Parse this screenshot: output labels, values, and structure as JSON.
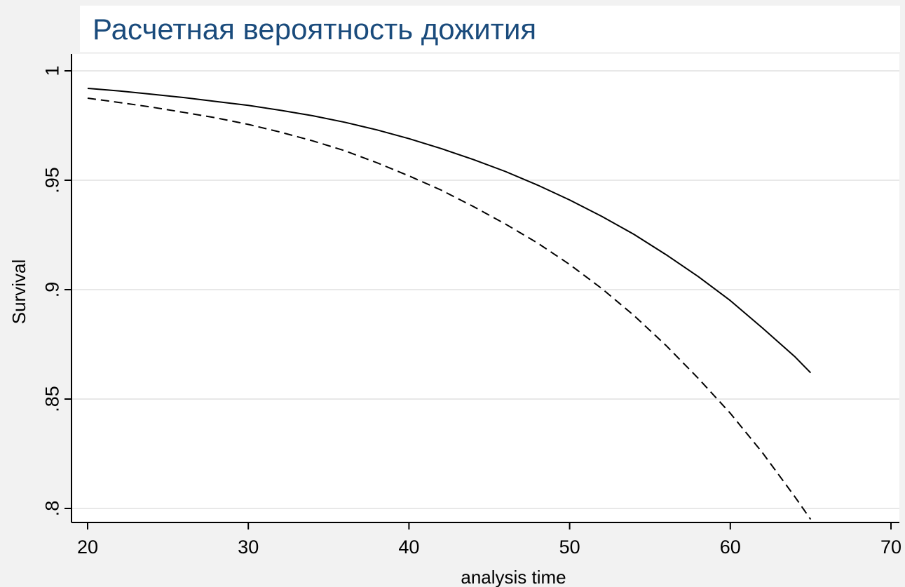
{
  "chart_data": {
    "type": "line",
    "title": "Расчетная вероятность дожития",
    "xlabel": "analysis time",
    "ylabel": "Survival",
    "xlim": [
      20,
      70
    ],
    "ylim": [
      0.8,
      1.0
    ],
    "x_ticks": [
      20,
      30,
      40,
      50,
      60,
      70
    ],
    "x_tick_labels": [
      "20",
      "30",
      "40",
      "50",
      "60",
      "70"
    ],
    "y_ticks": [
      0.8,
      0.85,
      0.9,
      0.95,
      1.0
    ],
    "y_tick_labels": [
      ".8",
      ".85",
      ".9",
      ".95",
      "1"
    ],
    "grid": true,
    "colors": {
      "series": "#000000",
      "grid": "#e8e8e8",
      "title": "#1a4b7c",
      "background": "#f2f2f2"
    },
    "series": [
      {
        "style": "solid",
        "x": [
          20,
          22,
          24,
          26,
          28,
          30,
          32,
          34,
          36,
          38,
          40,
          42,
          44,
          46,
          48,
          50,
          52,
          54,
          56,
          58,
          60,
          62,
          64,
          65
        ],
        "y": [
          0.992,
          0.9908,
          0.9893,
          0.9878,
          0.986,
          0.9842,
          0.982,
          0.9795,
          0.9765,
          0.973,
          0.969,
          0.9645,
          0.9595,
          0.954,
          0.9478,
          0.941,
          0.9335,
          0.9253,
          0.916,
          0.906,
          0.895,
          0.8825,
          0.8695,
          0.862
        ]
      },
      {
        "style": "dashed",
        "x": [
          20,
          22,
          24,
          26,
          28,
          30,
          32,
          34,
          36,
          38,
          40,
          42,
          44,
          46,
          48,
          50,
          52,
          54,
          56,
          58,
          60,
          62,
          64,
          65
        ],
        "y": [
          0.9875,
          0.9855,
          0.9834,
          0.981,
          0.9785,
          0.9755,
          0.972,
          0.968,
          0.9635,
          0.958,
          0.952,
          0.9455,
          0.938,
          0.93,
          0.9213,
          0.9115,
          0.9005,
          0.8882,
          0.8745,
          0.8595,
          0.8435,
          0.8255,
          0.8055,
          0.795
        ]
      }
    ]
  }
}
